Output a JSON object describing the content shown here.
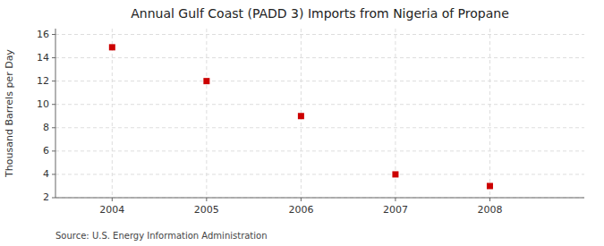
{
  "chart_data": {
    "type": "scatter",
    "title": "Annual Gulf Coast (PADD 3) Imports from Nigeria of Propane",
    "ylabel": "Thousand Barrels per Day",
    "annotations": [
      "Source: U.S. Energy Information Administration"
    ],
    "x": [
      2004,
      2005,
      2006,
      2007,
      2008
    ],
    "values": [
      14.9,
      12.0,
      9.0,
      4.0,
      3.0
    ],
    "xlim": [
      2003.4,
      2009.0
    ],
    "ylim": [
      2,
      16.5
    ],
    "xticks": [
      2004,
      2005,
      2006,
      2007,
      2008
    ],
    "yticks": [
      2,
      4,
      6,
      8,
      10,
      12,
      14,
      16
    ],
    "color": "#cc0000",
    "marker": "square",
    "grid": true
  }
}
